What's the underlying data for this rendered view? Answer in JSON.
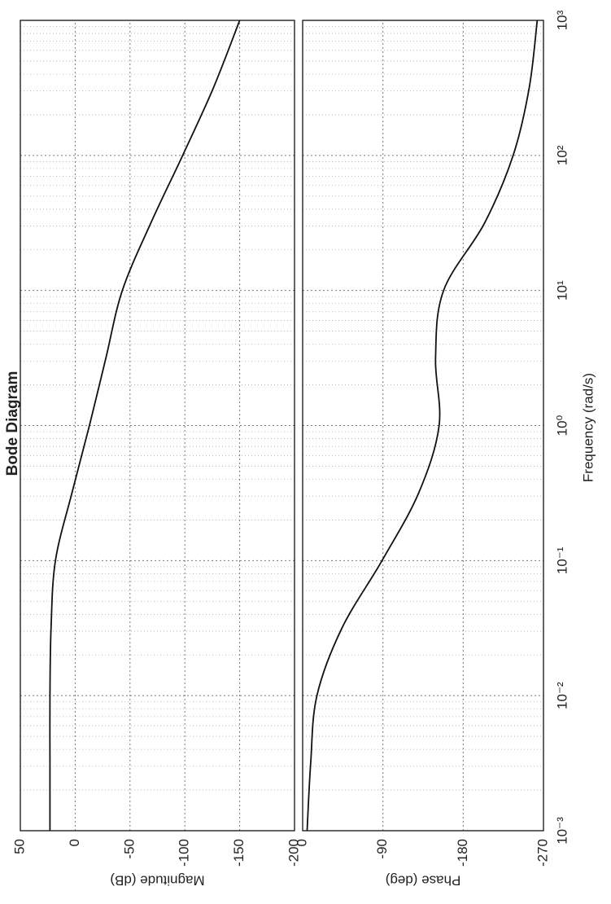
{
  "chart_data": [
    {
      "type": "line",
      "title": "Bode Diagram",
      "ylabel": "Magnitude (dB)",
      "xscale": "log",
      "xlim": [
        0.001,
        1000
      ],
      "x": [
        0.001,
        0.00316,
        0.01,
        0.0316,
        0.1,
        0.316,
        1,
        3.16,
        10,
        31.6,
        100,
        316,
        1000
      ],
      "series": [
        {
          "color": "#111111",
          "values": [
            23,
            23,
            23,
            22,
            18,
            3,
            -13,
            -28,
            -43,
            -69,
            -98,
            -126,
            -150
          ]
        }
      ],
      "ylim": [
        -200,
        50
      ],
      "yticks": [
        50,
        0,
        -50,
        -100,
        -150,
        -200
      ],
      "grid": true
    },
    {
      "type": "line",
      "ylabel": "Phase (deg)",
      "xlabel": "Frequency  (rad/s)",
      "xscale": "log",
      "xlim": [
        0.001,
        1000
      ],
      "xticks": [
        {
          "value": 0.001,
          "label": "10⁻³"
        },
        {
          "value": 0.01,
          "label": "10⁻²"
        },
        {
          "value": 0.1,
          "label": "10⁻¹"
        },
        {
          "value": 1,
          "label": "10⁰"
        },
        {
          "value": 10,
          "label": "10¹"
        },
        {
          "value": 100,
          "label": "10²"
        },
        {
          "value": 1000,
          "label": "10³"
        }
      ],
      "x": [
        0.001,
        0.00316,
        0.01,
        0.0316,
        0.1,
        0.316,
        1,
        3.16,
        10,
        31.6,
        100,
        316,
        1000
      ],
      "series": [
        {
          "color": "#111111",
          "values": [
            -5,
            -9,
            -16,
            -44,
            -89,
            -130,
            -153,
            -149,
            -158,
            -204,
            -236,
            -254,
            -263
          ]
        }
      ],
      "ylim": [
        -270,
        0
      ],
      "yticks": [
        0,
        -90,
        -180,
        -270
      ],
      "grid": true
    }
  ]
}
